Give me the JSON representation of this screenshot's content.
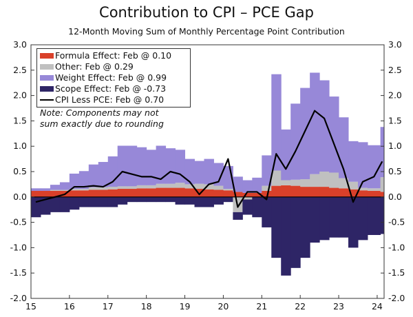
{
  "chart_data": {
    "type": "bar",
    "title": "Contribution to CPI – PCE Gap",
    "subtitle": "12-Month Moving Sum of Monthly Percentage Point Contribution",
    "ylim": [
      -2.0,
      3.0
    ],
    "yticks": [
      "3.0",
      "2.5",
      "2.0",
      "1.5",
      "1.0",
      "0.5",
      "0.0",
      "-0.5",
      "-1.0",
      "-1.5",
      "-2.0"
    ],
    "xticks": [
      "15",
      "16",
      "17",
      "18",
      "19",
      "20",
      "21",
      "22",
      "23",
      "24"
    ],
    "x": [
      "2015-01",
      "2015-04",
      "2015-07",
      "2015-10",
      "2016-01",
      "2016-04",
      "2016-07",
      "2016-10",
      "2017-01",
      "2017-04",
      "2017-07",
      "2017-10",
      "2018-01",
      "2018-04",
      "2018-07",
      "2018-10",
      "2019-01",
      "2019-04",
      "2019-07",
      "2019-10",
      "2020-01",
      "2020-04",
      "2020-07",
      "2020-10",
      "2021-01",
      "2021-04",
      "2021-07",
      "2021-10",
      "2022-01",
      "2022-04",
      "2022-07",
      "2022-10",
      "2023-01",
      "2023-04",
      "2023-07",
      "2023-10",
      "2024-02"
    ],
    "series": [
      {
        "name": "Formula Effect: Feb @ 0.10",
        "kind": "bar",
        "color": "#d9402a",
        "values": [
          0.12,
          0.12,
          0.12,
          0.12,
          0.13,
          0.13,
          0.14,
          0.14,
          0.15,
          0.16,
          0.16,
          0.17,
          0.17,
          0.18,
          0.18,
          0.18,
          0.17,
          0.16,
          0.15,
          0.14,
          0.13,
          0.1,
          0.08,
          0.08,
          0.12,
          0.22,
          0.23,
          0.22,
          0.2,
          0.2,
          0.2,
          0.18,
          0.17,
          0.15,
          0.13,
          0.12,
          0.1
        ]
      },
      {
        "name": "Other: Feb @ 0.29",
        "kind": "bar",
        "color": "#c0c0c0",
        "values": [
          0.0,
          0.0,
          0.02,
          0.02,
          0.03,
          0.03,
          0.05,
          0.05,
          0.05,
          0.05,
          0.05,
          0.06,
          0.06,
          0.08,
          0.08,
          0.1,
          0.08,
          0.1,
          0.1,
          0.08,
          0.03,
          -0.3,
          -0.05,
          0.0,
          0.1,
          0.3,
          0.1,
          0.12,
          0.15,
          0.25,
          0.3,
          0.3,
          0.2,
          0.15,
          0.05,
          0.05,
          0.29
        ]
      },
      {
        "name": "Weight Effect: Feb @ 0.99",
        "kind": "bar",
        "color": "#9788d8",
        "values": [
          0.05,
          0.05,
          0.1,
          0.15,
          0.3,
          0.35,
          0.45,
          0.5,
          0.6,
          0.8,
          0.8,
          0.75,
          0.7,
          0.75,
          0.7,
          0.65,
          0.5,
          0.45,
          0.5,
          0.45,
          0.45,
          0.3,
          0.25,
          0.3,
          0.6,
          1.9,
          1.0,
          1.5,
          1.8,
          2.0,
          1.8,
          1.5,
          1.2,
          0.8,
          0.9,
          0.85,
          0.99
        ]
      },
      {
        "name": "Scope Effect: Feb @ -0.73",
        "kind": "bar",
        "color": "#2e2566",
        "values": [
          -0.4,
          -0.35,
          -0.3,
          -0.3,
          -0.25,
          -0.2,
          -0.2,
          -0.2,
          -0.2,
          -0.15,
          -0.1,
          -0.1,
          -0.1,
          -0.1,
          -0.1,
          -0.15,
          -0.15,
          -0.2,
          -0.2,
          -0.15,
          -0.1,
          -0.15,
          -0.3,
          -0.4,
          -0.6,
          -1.2,
          -1.55,
          -1.4,
          -1.2,
          -0.9,
          -0.85,
          -0.8,
          -0.8,
          -1.0,
          -0.85,
          -0.75,
          -0.73
        ]
      },
      {
        "name": "CPI Less PCE: Feb @ 0.70",
        "kind": "line",
        "color": "#000000",
        "values": [
          -0.1,
          -0.05,
          0.0,
          0.05,
          0.2,
          0.2,
          0.22,
          0.2,
          0.3,
          0.5,
          0.45,
          0.4,
          0.4,
          0.35,
          0.5,
          0.45,
          0.3,
          0.05,
          0.25,
          0.3,
          0.75,
          -0.2,
          0.1,
          0.1,
          -0.05,
          0.85,
          0.55,
          0.9,
          1.3,
          1.7,
          1.55,
          1.05,
          0.55,
          -0.1,
          0.3,
          0.4,
          0.7
        ]
      }
    ],
    "legend_position": "top-left",
    "note": [
      "Note: Components may not",
      "sum exactly due to rounding"
    ],
    "grid": false
  }
}
